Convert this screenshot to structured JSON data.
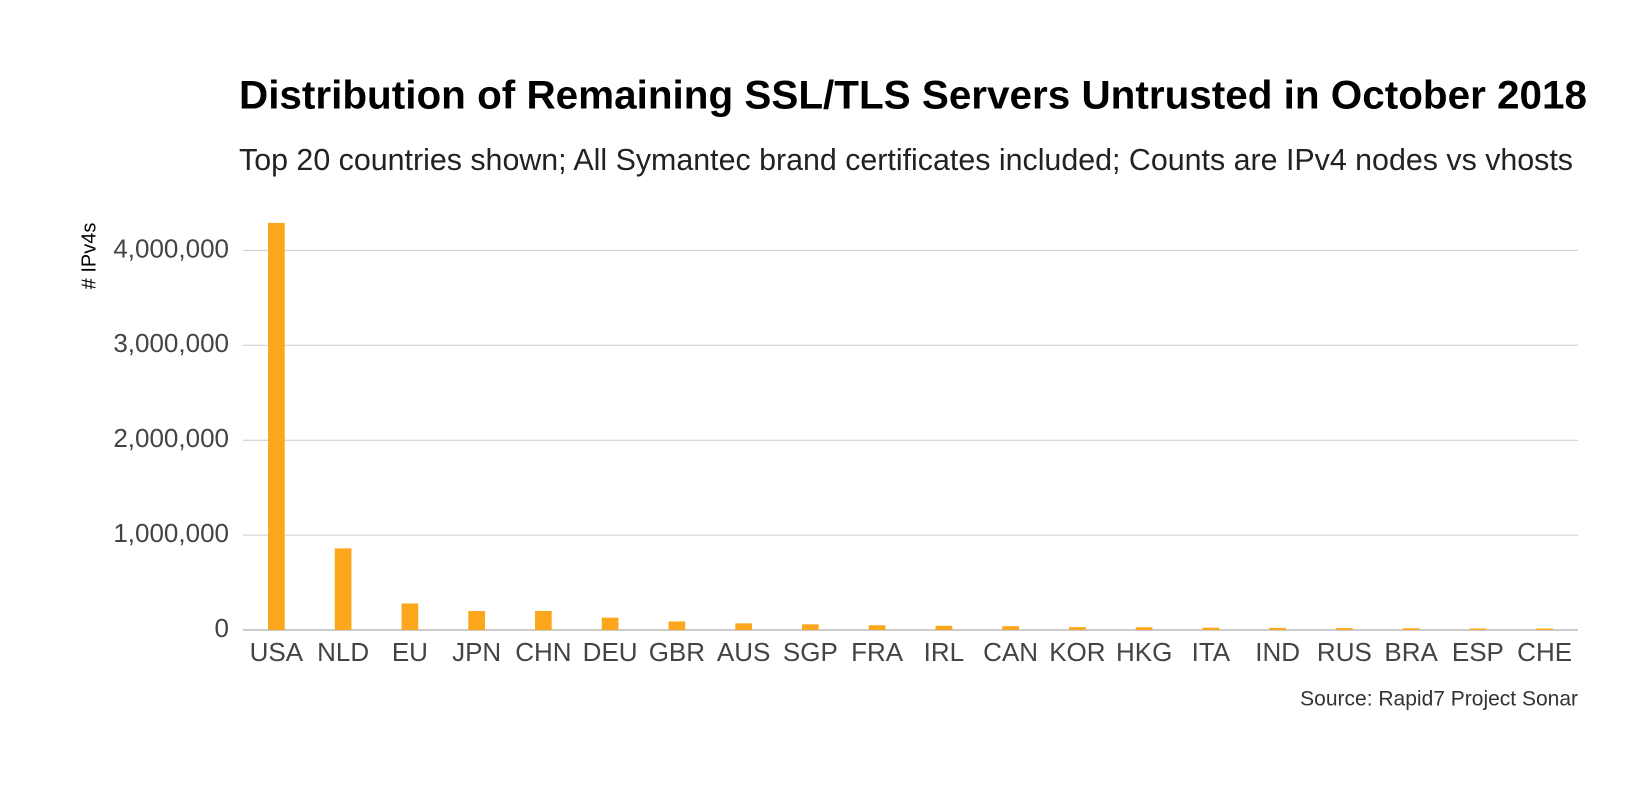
{
  "chart_data": {
    "type": "bar",
    "title": "Distribution of Remaining SSL/TLS Servers Untrusted in October 2018",
    "subtitle": "Top 20 countries shown; All Symantec brand certificates included; Counts are IPv4 nodes vs vhosts",
    "y_label": "# IPv4s",
    "source": "Source: Rapid7 Project Sonar",
    "categories": [
      "USA",
      "NLD",
      "EU",
      "JPN",
      "CHN",
      "DEU",
      "GBR",
      "AUS",
      "SGP",
      "FRA",
      "IRL",
      "CAN",
      "KOR",
      "HKG",
      "ITA",
      "IND",
      "RUS",
      "BRA",
      "ESP",
      "CHE"
    ],
    "values": [
      4290000,
      860000,
      280000,
      200000,
      200000,
      130000,
      90000,
      70000,
      60000,
      50000,
      45000,
      40000,
      30000,
      28000,
      25000,
      22000,
      20000,
      18000,
      16000,
      15000
    ],
    "color": "#fba61b",
    "ylim": [
      0,
      4400000
    ],
    "yticks": [
      0,
      {
        "value": 1000000,
        "label": "1,000,000"
      },
      {
        "value": 2000000,
        "label": "2,000,000"
      },
      {
        "value": 3000000,
        "label": "3,000,000"
      },
      {
        "value": 4000000,
        "label": "4,000,000"
      }
    ],
    "grid": true
  }
}
